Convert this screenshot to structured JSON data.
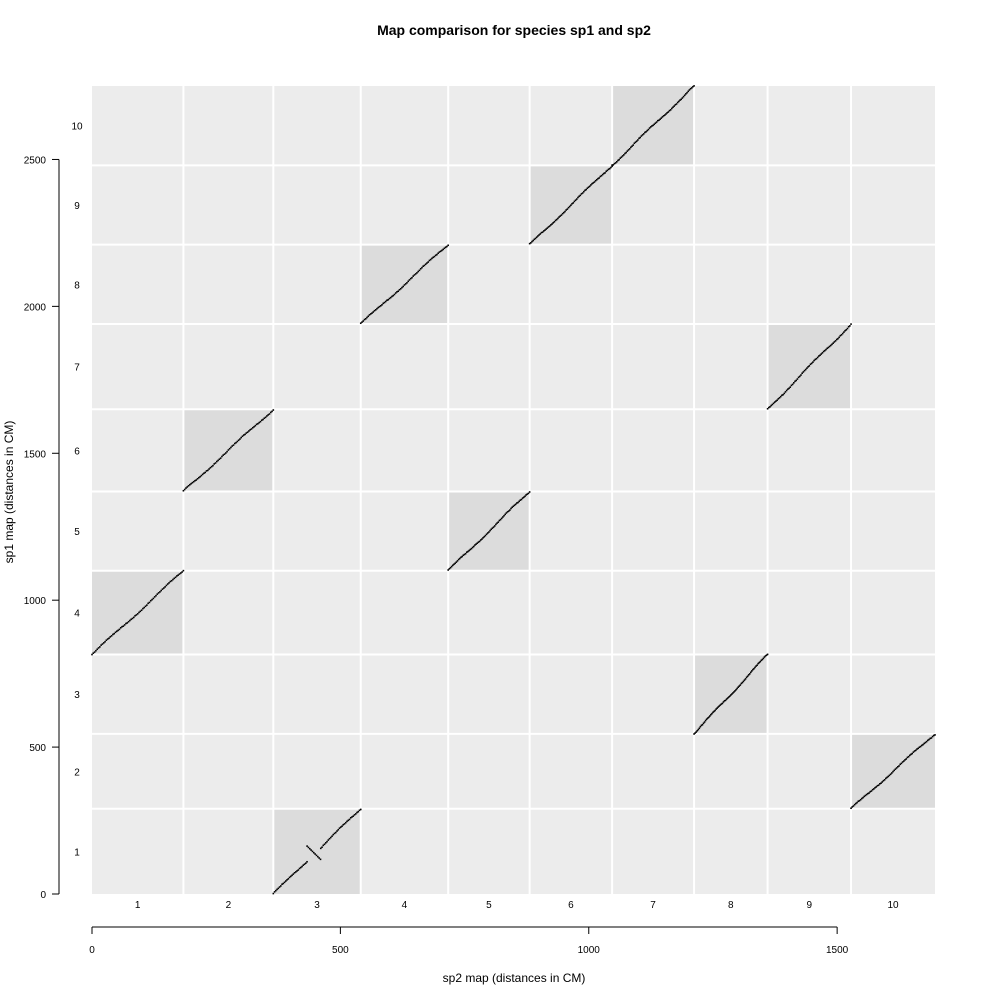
{
  "chart_data": {
    "type": "scatter",
    "title": "Map comparison for species sp1 and sp2",
    "xlabel": "sp2 map (distances in CM)",
    "ylabel": "sp1 map (distances in CM)",
    "x_ticks": [
      0,
      500,
      1000,
      1500
    ],
    "y_ticks": [
      0,
      500,
      1000,
      1500,
      2000,
      2500
    ],
    "x_chromosomes": [
      "1",
      "2",
      "3",
      "4",
      "5",
      "6",
      "7",
      "8",
      "9",
      "10"
    ],
    "y_chromosomes": [
      "1",
      "2",
      "3",
      "4",
      "5",
      "6",
      "7",
      "8",
      "9",
      "10"
    ],
    "x_boundaries": [
      0,
      184,
      365,
      541,
      717,
      881,
      1047,
      1212,
      1360,
      1528,
      1697
    ],
    "y_boundaries": [
      0,
      290,
      545,
      815,
      1100,
      1370,
      1650,
      1940,
      2210,
      2480,
      2750
    ],
    "background_color": "#ececec",
    "match_color": "#dcdcdc",
    "grid_color": "#ffffff",
    "point_color": "#000000",
    "blocks": [
      {
        "sp2": "1",
        "sp1": "4",
        "x": [
          0,
          184
        ],
        "y": [
          815,
          1100
        ],
        "orientation": "forward"
      },
      {
        "sp2": "2",
        "sp1": "6",
        "x": [
          184,
          365
        ],
        "y": [
          1370,
          1650
        ],
        "orientation": "forward"
      },
      {
        "sp2": "3",
        "sp1": "1",
        "x": [
          365,
          541
        ],
        "y": [
          0,
          290
        ],
        "orientation": "forward",
        "inversion": {
          "x": [
            433,
            460
          ],
          "y": [
            163,
            118
          ]
        }
      },
      {
        "sp2": "4",
        "sp1": "8",
        "x": [
          541,
          717
        ],
        "y": [
          1940,
          2210
        ],
        "orientation": "forward"
      },
      {
        "sp2": "5",
        "sp1": "5",
        "x": [
          717,
          881
        ],
        "y": [
          1100,
          1370
        ],
        "orientation": "forward"
      },
      {
        "sp2": "6",
        "sp1": "9",
        "x": [
          881,
          1047
        ],
        "y": [
          2210,
          2480
        ],
        "orientation": "forward"
      },
      {
        "sp2": "7",
        "sp1": "10",
        "x": [
          1047,
          1212
        ],
        "y": [
          2480,
          2750
        ],
        "orientation": "forward"
      },
      {
        "sp2": "8",
        "sp1": "3",
        "x": [
          1212,
          1360
        ],
        "y": [
          545,
          815
        ],
        "orientation": "forward"
      },
      {
        "sp2": "9",
        "sp1": "7",
        "x": [
          1360,
          1528
        ],
        "y": [
          1650,
          1940
        ],
        "orientation": "forward"
      },
      {
        "sp2": "10",
        "sp1": "2",
        "x": [
          1528,
          1697
        ],
        "y": [
          290,
          545
        ],
        "orientation": "forward"
      }
    ]
  }
}
